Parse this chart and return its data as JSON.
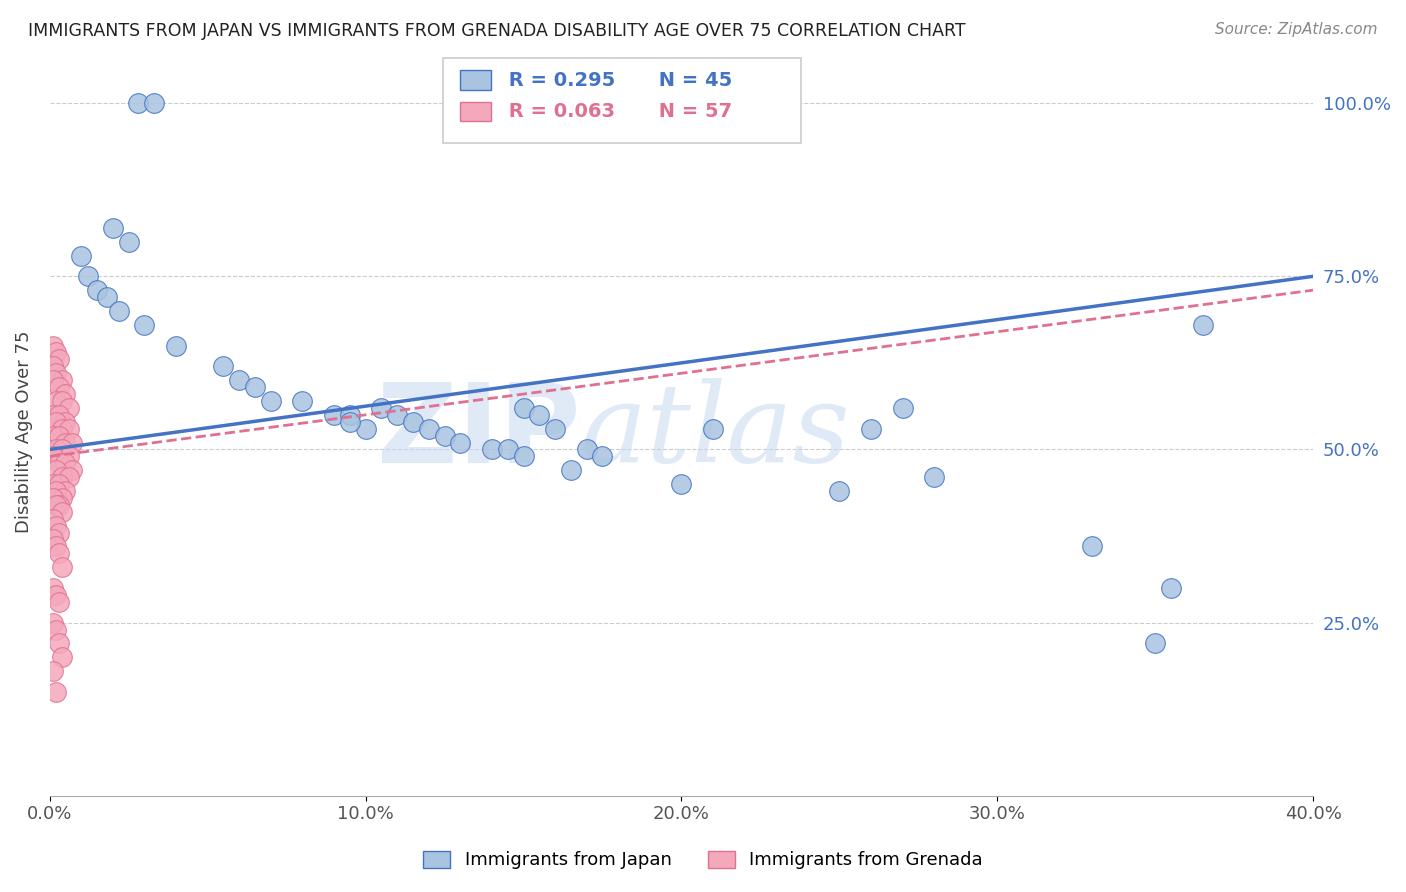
{
  "title": "IMMIGRANTS FROM JAPAN VS IMMIGRANTS FROM GRENADA DISABILITY AGE OVER 75 CORRELATION CHART",
  "source": "Source: ZipAtlas.com",
  "ylabel": "Disability Age Over 75",
  "legend_label_japan": "Immigrants from Japan",
  "legend_label_grenada": "Immigrants from Grenada",
  "legend_R_japan": "R = 0.295",
  "legend_N_japan": "N = 45",
  "legend_R_grenada": "R = 0.063",
  "legend_N_grenada": "N = 57",
  "color_japan": "#a8c4e0",
  "color_grenada": "#f4a8bb",
  "color_japan_line": "#4472c4",
  "color_japan_dark": "#4472c4",
  "color_grenada_dark": "#e07090",
  "color_grenada_line": "#e07090",
  "watermark_zip": "ZIP",
  "watermark_atlas": "atlas",
  "xlim": [
    0.0,
    0.4
  ],
  "ylim": [
    0.0,
    1.05
  ],
  "japan_x": [
    0.028,
    0.033,
    0.02,
    0.025,
    0.01,
    0.012,
    0.015,
    0.018,
    0.022,
    0.03,
    0.04,
    0.055,
    0.06,
    0.065,
    0.07,
    0.08,
    0.09,
    0.095,
    0.1,
    0.105,
    0.11,
    0.115,
    0.12,
    0.125,
    0.13,
    0.14,
    0.145,
    0.15,
    0.16,
    0.165,
    0.17,
    0.175,
    0.2,
    0.21,
    0.25,
    0.26,
    0.27,
    0.15,
    0.155,
    0.095,
    0.28,
    0.33,
    0.35,
    0.355,
    0.365
  ],
  "japan_y": [
    1.0,
    1.0,
    0.82,
    0.8,
    0.78,
    0.75,
    0.73,
    0.72,
    0.7,
    0.68,
    0.65,
    0.62,
    0.6,
    0.59,
    0.57,
    0.57,
    0.55,
    0.55,
    0.53,
    0.56,
    0.55,
    0.54,
    0.53,
    0.52,
    0.51,
    0.5,
    0.5,
    0.49,
    0.53,
    0.47,
    0.5,
    0.49,
    0.45,
    0.53,
    0.44,
    0.53,
    0.56,
    0.56,
    0.55,
    0.54,
    0.46,
    0.36,
    0.22,
    0.3,
    0.68
  ],
  "grenada_x": [
    0.001,
    0.002,
    0.003,
    0.001,
    0.002,
    0.004,
    0.001,
    0.003,
    0.005,
    0.002,
    0.004,
    0.006,
    0.001,
    0.003,
    0.005,
    0.002,
    0.004,
    0.006,
    0.001,
    0.003,
    0.005,
    0.007,
    0.002,
    0.004,
    0.006,
    0.001,
    0.003,
    0.005,
    0.007,
    0.002,
    0.004,
    0.006,
    0.001,
    0.003,
    0.005,
    0.002,
    0.004,
    0.001,
    0.003,
    0.002,
    0.004,
    0.001,
    0.002,
    0.003,
    0.001,
    0.002,
    0.003,
    0.004,
    0.001,
    0.002,
    0.003,
    0.001,
    0.002,
    0.003,
    0.004,
    0.001,
    0.002
  ],
  "grenada_y": [
    0.65,
    0.64,
    0.63,
    0.62,
    0.61,
    0.6,
    0.6,
    0.59,
    0.58,
    0.57,
    0.57,
    0.56,
    0.55,
    0.55,
    0.54,
    0.54,
    0.53,
    0.53,
    0.52,
    0.52,
    0.51,
    0.51,
    0.5,
    0.5,
    0.49,
    0.49,
    0.48,
    0.48,
    0.47,
    0.47,
    0.46,
    0.46,
    0.45,
    0.45,
    0.44,
    0.44,
    0.43,
    0.43,
    0.42,
    0.42,
    0.41,
    0.4,
    0.39,
    0.38,
    0.37,
    0.36,
    0.35,
    0.33,
    0.3,
    0.29,
    0.28,
    0.25,
    0.24,
    0.22,
    0.2,
    0.18,
    0.15
  ]
}
